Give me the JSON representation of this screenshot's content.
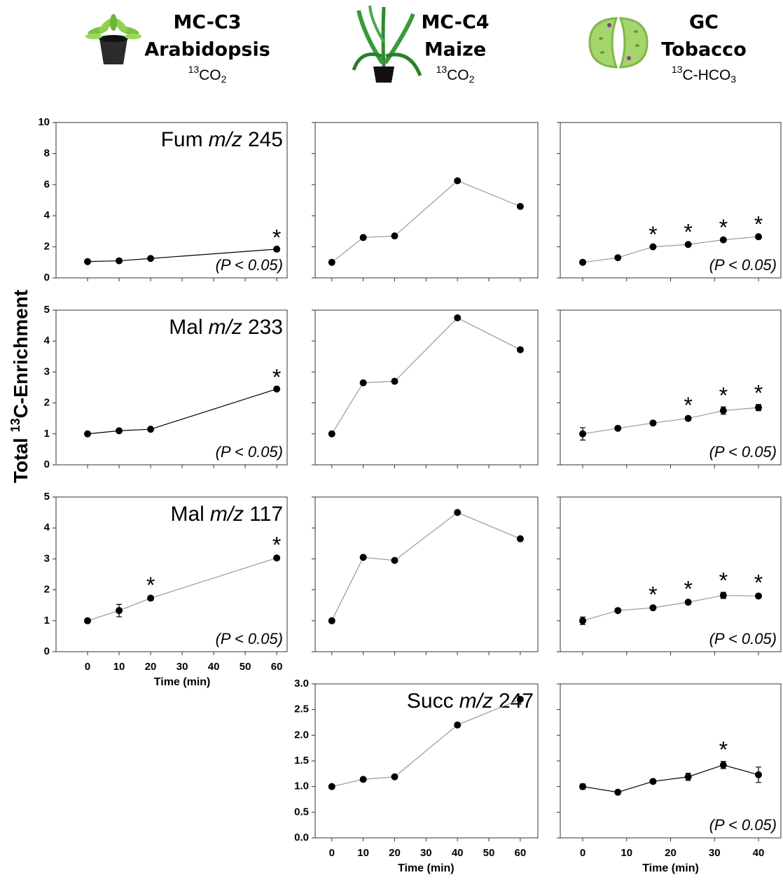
{
  "figure": {
    "y_label": [
      "Total ",
      "13",
      "C-Enrichment"
    ],
    "columns": [
      {
        "title": "MC-C3",
        "species": "Arabidopsis",
        "label": [
          "13",
          "CO",
          "2"
        ]
      },
      {
        "title": "MC-C4",
        "species": "Maize",
        "label": [
          "13",
          "CO",
          "2"
        ]
      },
      {
        "title": "GC",
        "species": "Tobacco",
        "label": [
          "13",
          "C-HCO",
          "3"
        ]
      }
    ]
  },
  "chart_data": [
    {
      "type": "line",
      "title": {
        "name": "Fum",
        "ion": "m/z",
        "mass": "245"
      },
      "note": "(P < 0.05)",
      "x": [
        0,
        10,
        20,
        60
      ],
      "series": [
        {
          "color": "#000000",
          "line_color": "#000000",
          "values": [
            1.05,
            1.1,
            1.25,
            1.85
          ]
        }
      ],
      "annotations": [
        {
          "x": 60,
          "text": "*"
        }
      ],
      "xlim": [
        -10,
        63.3
      ],
      "ylim": [
        0,
        10
      ],
      "xticks": [
        0,
        10,
        20,
        30,
        40,
        50,
        60
      ],
      "yticks": [
        0,
        2,
        4,
        6,
        8,
        10
      ],
      "xtick_labels": false,
      "ytick_labels": true
    },
    {
      "type": "line",
      "x": [
        0,
        10,
        20,
        40,
        60
      ],
      "series": [
        {
          "color": "#000000",
          "line_color": "#999999",
          "values": [
            1.0,
            2.6,
            2.7,
            6.25,
            4.6
          ]
        }
      ],
      "xlim": [
        -5.3,
        65.6
      ],
      "ylim": [
        0,
        10
      ],
      "xticks": [
        0,
        10,
        20,
        30,
        40,
        50,
        60
      ],
      "yticks": [
        0,
        2,
        4,
        6,
        8,
        10
      ],
      "xtick_labels": false,
      "ytick_labels": false
    },
    {
      "type": "line",
      "note": "(P < 0.05)",
      "x": [
        0,
        8,
        16,
        24,
        32,
        40
      ],
      "series": [
        {
          "color": "#000000",
          "line_color": "#999999",
          "values": [
            1.0,
            1.3,
            2.0,
            2.15,
            2.45,
            2.65
          ],
          "errors": [
            0.05,
            0.1,
            0.05,
            0.05,
            0.05,
            0.05
          ]
        }
      ],
      "annotations": [
        {
          "x": 16,
          "text": "*"
        },
        {
          "x": 24,
          "text": "*"
        },
        {
          "x": 32,
          "text": "*"
        },
        {
          "x": 40,
          "text": "*"
        }
      ],
      "xlim": [
        -5.1,
        45.1
      ],
      "ylim": [
        0,
        10
      ],
      "xticks": [
        0,
        10,
        20,
        30,
        40
      ],
      "yticks": [
        0,
        2,
        4,
        6,
        8,
        10
      ],
      "xtick_labels": false,
      "ytick_labels": false
    },
    {
      "type": "line",
      "title": {
        "name": "Mal",
        "ion": "m/z",
        "mass": "233"
      },
      "note": "(P < 0.05)",
      "x": [
        0,
        10,
        20,
        60
      ],
      "series": [
        {
          "color": "#000000",
          "line_color": "#000000",
          "values": [
            1.0,
            1.1,
            1.15,
            2.45
          ]
        }
      ],
      "annotations": [
        {
          "x": 60,
          "text": "*"
        }
      ],
      "xlim": [
        -10,
        63.3
      ],
      "ylim": [
        0,
        5
      ],
      "xticks": [
        0,
        10,
        20,
        30,
        40,
        50,
        60
      ],
      "yticks": [
        0,
        1,
        2,
        3,
        4,
        5
      ],
      "xtick_labels": false,
      "ytick_labels": true
    },
    {
      "type": "line",
      "x": [
        0,
        10,
        20,
        40,
        60
      ],
      "series": [
        {
          "color": "#000000",
          "line_color": "#999999",
          "values": [
            1.0,
            2.65,
            2.7,
            4.75,
            3.72
          ]
        }
      ],
      "xlim": [
        -5.3,
        65.6
      ],
      "ylim": [
        0,
        5
      ],
      "xticks": [
        0,
        10,
        20,
        30,
        40,
        50,
        60
      ],
      "yticks": [
        0,
        1,
        2,
        3,
        4,
        5
      ],
      "xtick_labels": false,
      "ytick_labels": false
    },
    {
      "type": "line",
      "note": "(P < 0.05)",
      "x": [
        0,
        8,
        16,
        24,
        32,
        40
      ],
      "series": [
        {
          "color": "#000000",
          "line_color": "#999999",
          "values": [
            1.0,
            1.18,
            1.35,
            1.5,
            1.75,
            1.85
          ],
          "errors": [
            0.2,
            0.05,
            0.05,
            0.05,
            0.12,
            0.1
          ]
        }
      ],
      "annotations": [
        {
          "x": 24,
          "text": "*"
        },
        {
          "x": 32,
          "text": "*"
        },
        {
          "x": 40,
          "text": "*"
        }
      ],
      "xlim": [
        -5.1,
        45.1
      ],
      "ylim": [
        0,
        5
      ],
      "xticks": [
        0,
        10,
        20,
        30,
        40
      ],
      "yticks": [
        0,
        1,
        2,
        3,
        4,
        5
      ],
      "xtick_labels": false,
      "ytick_labels": false
    },
    {
      "type": "line",
      "title": {
        "name": "Mal",
        "ion": "m/z",
        "mass": "117"
      },
      "note": "(P < 0.05)",
      "x": [
        0,
        10,
        20,
        60
      ],
      "series": [
        {
          "color": "#000000",
          "line_color": "#999999",
          "values": [
            1.0,
            1.33,
            1.73,
            3.03
          ],
          "errors": [
            0.05,
            0.2,
            0.05,
            0.05
          ]
        }
      ],
      "annotations": [
        {
          "x": 20,
          "text": "*"
        },
        {
          "x": 60,
          "text": "*"
        }
      ],
      "xlim": [
        -10,
        63.3
      ],
      "ylim": [
        0,
        5
      ],
      "xticks": [
        0,
        10,
        20,
        30,
        40,
        50,
        60
      ],
      "yticks": [
        0,
        1,
        2,
        3,
        4,
        5
      ],
      "xtick_labels": true,
      "ytick_labels": true,
      "xlabel": "Time (min)"
    },
    {
      "type": "line",
      "x": [
        0,
        10,
        20,
        40,
        60
      ],
      "series": [
        {
          "color": "#000000",
          "line_color": "#999999",
          "values": [
            1.0,
            3.05,
            2.95,
            4.5,
            3.65
          ]
        }
      ],
      "xlim": [
        -5.3,
        65.6
      ],
      "ylim": [
        0,
        5
      ],
      "xticks": [
        0,
        10,
        20,
        30,
        40,
        50,
        60
      ],
      "yticks": [
        0,
        1,
        2,
        3,
        4,
        5
      ],
      "xtick_labels": false,
      "ytick_labels": false
    },
    {
      "type": "line",
      "note": "(P < 0.05)",
      "x": [
        0,
        8,
        16,
        24,
        32,
        40
      ],
      "series": [
        {
          "color": "#000000",
          "line_color": "#999999",
          "values": [
            1.0,
            1.33,
            1.42,
            1.6,
            1.82,
            1.8
          ],
          "errors": [
            0.12,
            0.05,
            0.05,
            0.05,
            0.1,
            0.05
          ]
        }
      ],
      "annotations": [
        {
          "x": 16,
          "text": "*"
        },
        {
          "x": 24,
          "text": "*"
        },
        {
          "x": 32,
          "text": "*"
        },
        {
          "x": 40,
          "text": "*"
        }
      ],
      "xlim": [
        -5.1,
        45.1
      ],
      "ylim": [
        0,
        5
      ],
      "xticks": [
        0,
        10,
        20,
        30,
        40
      ],
      "yticks": [
        0,
        1,
        2,
        3,
        4,
        5
      ],
      "xtick_labels": false,
      "ytick_labels": false
    },
    {
      "type": "line",
      "title": {
        "name": "Succ",
        "ion": "m/z",
        "mass": "247"
      },
      "x": [
        0,
        10,
        20,
        40,
        60
      ],
      "series": [
        {
          "color": "#000000",
          "line_color": "#999999",
          "values": [
            1.0,
            1.14,
            1.19,
            2.2,
            2.7
          ]
        }
      ],
      "xlim": [
        -5.3,
        65.6
      ],
      "ylim": [
        0,
        3
      ],
      "xticks": [
        0,
        10,
        20,
        30,
        40,
        50,
        60
      ],
      "yticks": [
        {
          "value": 0,
          "label": "0.0"
        },
        {
          "value": 0.5,
          "label": "0.5"
        },
        {
          "value": 1,
          "label": "1.0"
        },
        {
          "value": 1.5,
          "label": "1.5"
        },
        {
          "value": 2,
          "label": "2.0"
        },
        {
          "value": 2.5,
          "label": "2.5"
        },
        {
          "value": 3,
          "label": "3.0"
        }
      ],
      "xtick_labels": true,
      "ytick_labels": true,
      "xlabel": "Time (min)"
    },
    {
      "type": "line",
      "note": "(P < 0.05)",
      "x": [
        0,
        8,
        16,
        24,
        32,
        40
      ],
      "series": [
        {
          "color": "#000000",
          "line_color": "#000000",
          "values": [
            1.0,
            0.89,
            1.1,
            1.19,
            1.42,
            1.23
          ],
          "errors": [
            0.05,
            0.03,
            0.03,
            0.07,
            0.07,
            0.15
          ]
        }
      ],
      "annotations": [
        {
          "x": 32,
          "text": "*"
        }
      ],
      "xlim": [
        -5.1,
        45.1
      ],
      "ylim": [
        0,
        3
      ],
      "xticks": [
        0,
        10,
        20,
        30,
        40
      ],
      "yticks": [
        0,
        0.5,
        1,
        1.5,
        2,
        2.5,
        3
      ],
      "xtick_labels": true,
      "ytick_labels": false,
      "xlabel": "Time (min)"
    }
  ]
}
